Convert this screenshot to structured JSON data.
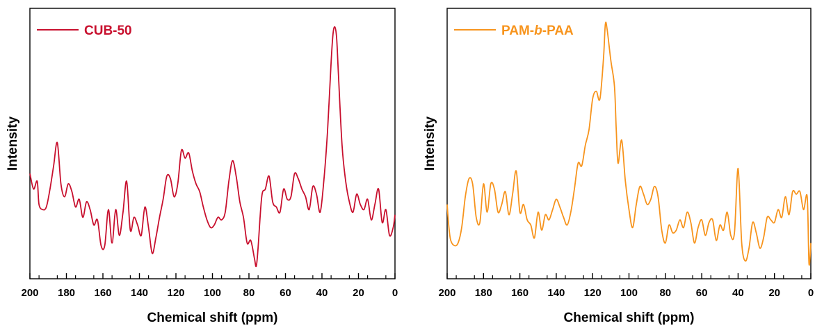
{
  "chart_data": [
    {
      "type": "line",
      "xlabel": "Chemical shift (ppm)",
      "ylabel": "Intensity",
      "xlim": [
        200,
        0
      ],
      "ylim": [
        0,
        1
      ],
      "x_ticks": [
        200,
        180,
        160,
        140,
        120,
        100,
        80,
        60,
        40,
        20,
        0
      ],
      "x_tick_labels": [
        "200",
        "180",
        "160",
        "140",
        "120",
        "100",
        "80",
        "60",
        "40",
        "20",
        "0"
      ],
      "grid": false,
      "legend_position": "top-left",
      "series": [
        {
          "name": "CUB-50",
          "color": "#c8102e",
          "x": [
            200,
            198,
            196,
            195,
            193,
            191,
            189,
            187,
            185,
            183,
            181,
            179,
            177,
            175,
            173,
            171,
            169,
            167,
            165,
            163,
            161,
            159,
            157,
            155,
            153,
            151,
            149,
            147,
            145,
            143,
            141,
            139,
            137,
            135,
            133,
            131,
            129,
            127,
            125,
            123,
            121,
            119,
            117,
            115,
            113,
            111,
            109,
            107,
            105,
            103,
            101,
            99,
            97,
            95,
            93,
            91,
            89,
            87,
            85,
            83,
            81,
            79,
            77,
            76,
            75,
            73,
            71,
            69,
            67,
            65,
            63,
            61,
            59,
            57,
            55,
            53,
            51,
            49,
            47,
            45,
            43,
            41,
            39,
            37,
            35,
            34,
            33,
            32,
            31,
            29,
            27,
            25,
            23,
            21,
            19,
            17,
            15,
            13,
            11,
            9,
            7,
            5,
            3,
            1,
            0
          ],
          "y": [
            0.39,
            0.33,
            0.36,
            0.27,
            0.25,
            0.26,
            0.33,
            0.42,
            0.51,
            0.35,
            0.3,
            0.35,
            0.32,
            0.26,
            0.29,
            0.22,
            0.28,
            0.25,
            0.19,
            0.21,
            0.11,
            0.11,
            0.25,
            0.12,
            0.25,
            0.15,
            0.24,
            0.36,
            0.17,
            0.22,
            0.19,
            0.15,
            0.26,
            0.18,
            0.08,
            0.14,
            0.22,
            0.29,
            0.38,
            0.37,
            0.3,
            0.35,
            0.48,
            0.45,
            0.47,
            0.4,
            0.35,
            0.32,
            0.26,
            0.21,
            0.18,
            0.19,
            0.22,
            0.21,
            0.24,
            0.36,
            0.44,
            0.38,
            0.28,
            0.22,
            0.12,
            0.13,
            0.06,
            0.03,
            0.1,
            0.3,
            0.33,
            0.38,
            0.28,
            0.26,
            0.24,
            0.33,
            0.29,
            0.3,
            0.39,
            0.37,
            0.33,
            0.3,
            0.25,
            0.34,
            0.31,
            0.24,
            0.36,
            0.55,
            0.82,
            0.93,
            0.96,
            0.92,
            0.78,
            0.5,
            0.36,
            0.28,
            0.24,
            0.31,
            0.27,
            0.25,
            0.29,
            0.21,
            0.27,
            0.33,
            0.2,
            0.25,
            0.15,
            0.18,
            0.23
          ]
        },
        {
          "name": "PAM-b-PAA",
          "color": "#f7941d",
          "x": [
            200,
            199,
            198,
            196,
            194,
            192,
            190,
            188,
            186,
            184,
            182,
            180,
            178,
            176,
            174,
            172,
            170,
            168,
            166,
            164,
            162,
            160,
            158,
            156,
            154,
            152,
            150,
            148,
            146,
            144,
            142,
            140,
            138,
            136,
            134,
            132,
            130,
            128,
            126,
            124,
            122,
            120,
            118,
            116,
            114,
            113,
            112,
            110,
            108,
            107,
            106,
            104,
            102,
            100,
            98,
            96,
            94,
            92,
            90,
            88,
            86,
            84,
            82,
            80,
            78,
            76,
            74,
            72,
            70,
            68,
            66,
            64,
            62,
            60,
            58,
            56,
            54,
            52,
            50,
            48,
            46,
            44,
            42,
            40,
            38,
            36,
            34,
            32,
            30,
            28,
            26,
            24,
            22,
            20,
            18,
            16,
            14,
            12,
            10,
            8,
            6,
            4,
            2,
            1,
            0
          ],
          "y": [
            0.27,
            0.18,
            0.13,
            0.11,
            0.12,
            0.18,
            0.3,
            0.37,
            0.35,
            0.22,
            0.2,
            0.35,
            0.24,
            0.35,
            0.33,
            0.24,
            0.27,
            0.32,
            0.23,
            0.31,
            0.4,
            0.24,
            0.27,
            0.21,
            0.19,
            0.14,
            0.24,
            0.17,
            0.23,
            0.21,
            0.25,
            0.29,
            0.26,
            0.22,
            0.19,
            0.24,
            0.33,
            0.43,
            0.42,
            0.5,
            0.56,
            0.68,
            0.71,
            0.68,
            0.84,
            0.97,
            0.95,
            0.83,
            0.73,
            0.56,
            0.43,
            0.52,
            0.36,
            0.25,
            0.18,
            0.27,
            0.34,
            0.31,
            0.27,
            0.29,
            0.34,
            0.3,
            0.17,
            0.12,
            0.19,
            0.16,
            0.17,
            0.21,
            0.18,
            0.24,
            0.2,
            0.12,
            0.18,
            0.21,
            0.15,
            0.2,
            0.21,
            0.13,
            0.19,
            0.17,
            0.24,
            0.15,
            0.16,
            0.41,
            0.12,
            0.05,
            0.1,
            0.2,
            0.16,
            0.1,
            0.14,
            0.22,
            0.21,
            0.2,
            0.25,
            0.22,
            0.3,
            0.23,
            0.32,
            0.31,
            0.32,
            0.25,
            0.3,
            0.04,
            0.12
          ]
        }
      ]
    }
  ]
}
